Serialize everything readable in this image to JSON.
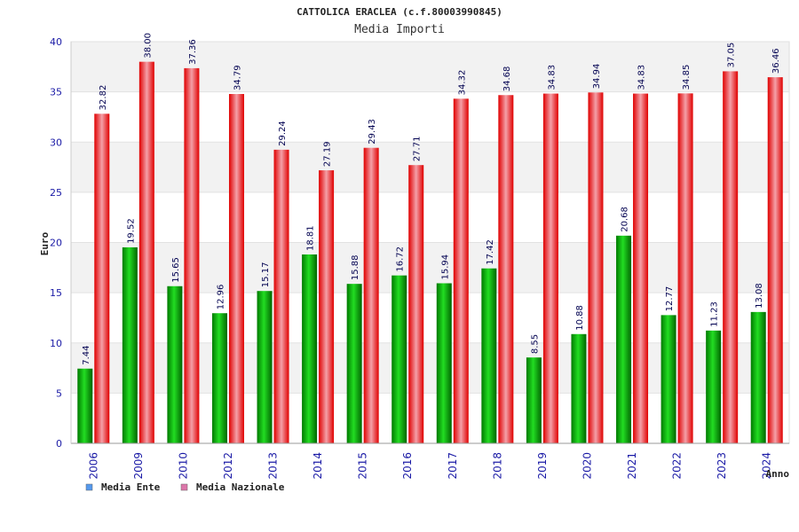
{
  "chart_data": {
    "type": "bar",
    "title": "CATTOLICA ERACLEA (c.f.80003990845)",
    "subtitle": "Media Importi",
    "xlabel": "Anno",
    "ylabel": "Euro",
    "ylim": [
      0,
      40
    ],
    "yticks": [
      0,
      5,
      10,
      15,
      20,
      25,
      30,
      35,
      40
    ],
    "categories": [
      "2006",
      "2009",
      "2010",
      "2012",
      "2013",
      "2014",
      "2015",
      "2016",
      "2017",
      "2018",
      "2019",
      "2020",
      "2021",
      "2022",
      "2023",
      "2024"
    ],
    "series": [
      {
        "name": "Media Ente",
        "color": "#00b000",
        "legend_color": "#5599ee",
        "values": [
          7.44,
          19.52,
          15.65,
          12.96,
          15.17,
          18.81,
          15.88,
          16.72,
          15.94,
          17.42,
          8.55,
          10.88,
          20.68,
          12.77,
          11.23,
          13.08
        ],
        "labels": [
          "7.44",
          "19.52",
          "15.65",
          "12.96",
          "15.17",
          "18.81",
          "15.88",
          "16.72",
          "15.94",
          "17.42",
          "8.55",
          "10.88",
          "20.68",
          "12.77",
          "11.23",
          "13.08"
        ]
      },
      {
        "name": "Media Nazionale",
        "color": "#ee1111",
        "legend_color": "#dd77aa",
        "values": [
          32.82,
          38.0,
          37.36,
          34.79,
          29.24,
          27.19,
          29.43,
          27.71,
          34.32,
          34.68,
          34.83,
          34.94,
          34.83,
          34.85,
          37.05,
          36.46
        ],
        "labels": [
          "32.82",
          "38.00",
          "37.36",
          "34.79",
          "29.24",
          "27.19",
          "29.43",
          "27.71",
          "34.32",
          "34.68",
          "34.83",
          "34.94",
          "34.83",
          "34.85",
          "37.05",
          "36.46"
        ]
      }
    ],
    "grid": true,
    "legend": "bottom-left"
  }
}
